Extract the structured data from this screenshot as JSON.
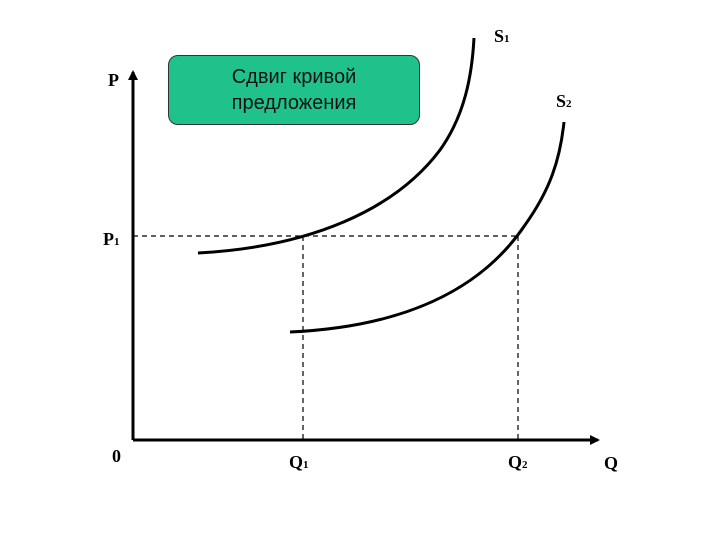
{
  "title": {
    "line1": "Сдвиг кривой",
    "line2": "предложения"
  },
  "axes": {
    "y_label": "P",
    "x_label": "Q",
    "origin_label": "0"
  },
  "markers": {
    "p1": {
      "main": "P",
      "sub": "1"
    },
    "q1": {
      "main": "Q",
      "sub": "1"
    },
    "q2": {
      "main": "Q",
      "sub": "2"
    }
  },
  "curves": {
    "s1": {
      "main": "S",
      "sub": "1"
    },
    "s2": {
      "main": "S",
      "sub": "2"
    }
  },
  "colors": {
    "title_fill": "#1fc28a",
    "ink": "#000000"
  }
}
